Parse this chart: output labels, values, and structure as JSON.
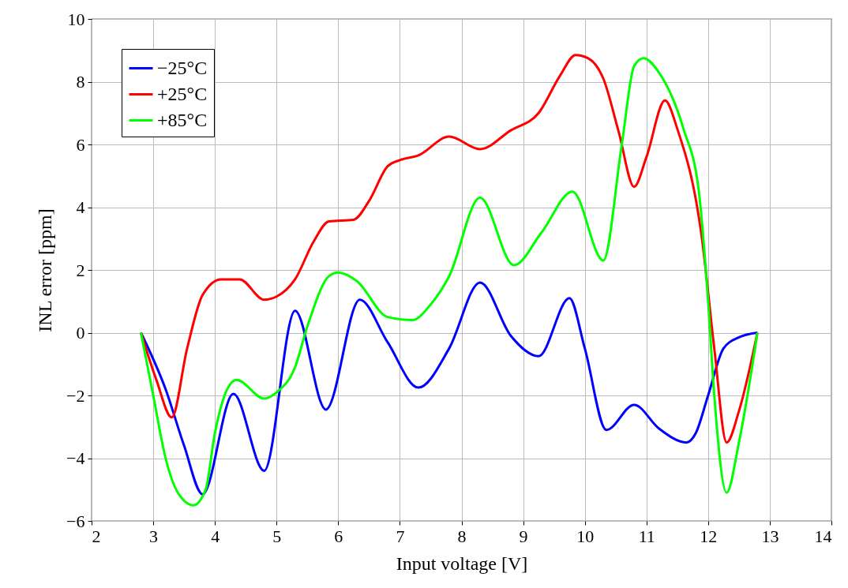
{
  "chart_data": {
    "type": "line",
    "xlabel": "Input voltage [V]",
    "ylabel": "INL error [ppm]",
    "xlim": [
      2,
      14
    ],
    "xticks": [
      2,
      3,
      4,
      5,
      6,
      7,
      8,
      9,
      10,
      11,
      12,
      13,
      14
    ],
    "ylim": [
      -6,
      10
    ],
    "yticks": [
      -6,
      -4,
      -2,
      0,
      2,
      4,
      6,
      8,
      10
    ],
    "grid": true,
    "legend": "top left",
    "line_style": "solid",
    "marker": "none",
    "series": [
      {
        "name": "−25°C",
        "color": "#0000ff",
        "x": [
          2.8,
          3.2,
          3.5,
          3.8,
          4.3,
          4.8,
          5.3,
          5.8,
          6.35,
          6.8,
          7.3,
          7.8,
          8.3,
          8.8,
          9.25,
          9.75,
          10.0,
          10.35,
          10.8,
          11.2,
          11.65,
          11.8,
          12.0,
          12.25,
          12.5,
          12.8
        ],
        "values": [
          0,
          -1.8,
          -3.6,
          -5.15,
          -1.95,
          -4.4,
          0.7,
          -2.45,
          1.05,
          -0.3,
          -1.75,
          -0.5,
          1.6,
          -0.1,
          -0.75,
          1.1,
          -0.5,
          -3.1,
          -2.3,
          -3.05,
          -3.5,
          -3.2,
          -2.0,
          -0.5,
          -0.15,
          0
        ]
      },
      {
        "name": "+25°C",
        "color": "#ff0000",
        "x": [
          2.8,
          3.05,
          3.3,
          3.55,
          3.8,
          4.1,
          4.4,
          4.8,
          5.0,
          5.3,
          5.6,
          5.85,
          6.25,
          6.5,
          6.8,
          7.0,
          7.3,
          7.8,
          8.3,
          8.8,
          9.25,
          9.6,
          9.85,
          10.05,
          10.3,
          10.55,
          10.8,
          11.0,
          11.3,
          11.5,
          11.9,
          12.1,
          12.3,
          12.5,
          12.8
        ],
        "values": [
          0,
          -1.5,
          -2.7,
          -0.5,
          1.2,
          1.7,
          1.7,
          1.05,
          1.15,
          1.7,
          2.9,
          3.55,
          3.6,
          4.2,
          5.3,
          5.5,
          5.65,
          6.25,
          5.85,
          6.45,
          7.0,
          8.2,
          8.85,
          8.75,
          8.1,
          6.4,
          4.65,
          5.6,
          7.4,
          6.5,
          3.0,
          -0.5,
          -3.5,
          -2.5,
          0
        ]
      },
      {
        "name": "+85°C",
        "color": "#00ff00",
        "x": [
          2.8,
          3.0,
          3.2,
          3.4,
          3.65,
          3.85,
          4.0,
          4.2,
          4.35,
          4.8,
          5.0,
          5.3,
          5.5,
          5.85,
          6.0,
          6.3,
          6.8,
          7.2,
          7.5,
          7.8,
          8.3,
          8.85,
          9.3,
          9.8,
          10.3,
          10.6,
          10.8,
          10.95,
          11.2,
          11.6,
          11.85,
          12.0,
          12.1,
          12.3,
          12.5,
          12.8
        ],
        "values": [
          0,
          -2.0,
          -4.0,
          -5.1,
          -5.5,
          -5.0,
          -3.2,
          -1.8,
          -1.5,
          -2.1,
          -1.9,
          -1.1,
          0.2,
          1.8,
          1.92,
          1.65,
          0.5,
          0.4,
          0.9,
          1.8,
          4.3,
          2.15,
          3.2,
          4.5,
          2.3,
          6.0,
          8.5,
          8.75,
          8.3,
          6.5,
          4.5,
          1.0,
          -2.0,
          -5.1,
          -3.5,
          0
        ]
      }
    ]
  }
}
